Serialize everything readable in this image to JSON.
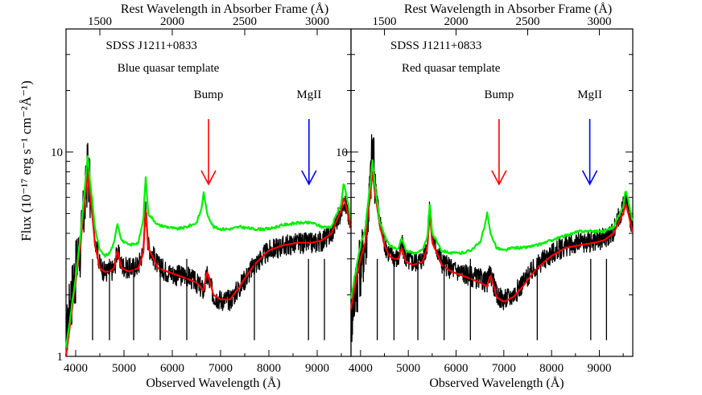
{
  "figure": {
    "ylabel": "Flux (10⁻¹⁷ erg s⁻¹ cm⁻²Å⁻¹)",
    "xlabel_bottom": "Observed Wavelength   (Å)",
    "xlabel_top": "Rest Wavelength in Absorber Frame (Å)"
  },
  "chart_data": [
    {
      "type": "line",
      "object": "SDSS J1211+0833",
      "template_label": "Blue quasar template",
      "template_color": "#0000ff",
      "xlabel": "Observed Wavelength   (Å)",
      "x2label": "Rest Wavelength in Absorber Frame (Å)",
      "ylabel": "Flux (10⁻¹⁷ erg s⁻¹ cm⁻²Å⁻¹)",
      "xlim": [
        3800,
        9700
      ],
      "ylim": [
        1,
        40
      ],
      "yscale": "log",
      "xticks": [
        "4000",
        "5000",
        "6000",
        "7000",
        "8000",
        "9000"
      ],
      "x2ticks": [
        "1500",
        "2000",
        "2500",
        "3000"
      ],
      "yticks": [
        "1",
        "10"
      ],
      "annotations": [
        {
          "text": "Bump",
          "x": 6750,
          "color": "#ff0000"
        },
        {
          "text": "MgII",
          "x": 8830,
          "color": "#0000ff"
        }
      ],
      "series": [
        {
          "color": "#000000",
          "points": [
            [
              3800,
              1.2
            ],
            [
              3900,
              2.0
            ],
            [
              4000,
              2.7
            ],
            [
              4100,
              3.5
            ],
            [
              4200,
              6.0
            ],
            [
              4250,
              9.0
            ],
            [
              4300,
              6.5
            ],
            [
              4400,
              3.8
            ],
            [
              4500,
              2.8
            ],
            [
              4600,
              2.6
            ],
            [
              4700,
              2.6
            ],
            [
              4800,
              2.7
            ],
            [
              4860,
              3.3
            ],
            [
              4950,
              2.8
            ],
            [
              5100,
              2.7
            ],
            [
              5300,
              2.8
            ],
            [
              5400,
              3.3
            ],
            [
              5450,
              5.3
            ],
            [
              5500,
              3.5
            ],
            [
              5700,
              2.8
            ],
            [
              5900,
              2.6
            ],
            [
              6100,
              2.5
            ],
            [
              6300,
              2.5
            ],
            [
              6500,
              2.3
            ],
            [
              6650,
              2.1
            ],
            [
              6720,
              2.5
            ],
            [
              6850,
              2.0
            ],
            [
              7000,
              1.9
            ],
            [
              7200,
              1.9
            ],
            [
              7400,
              2.2
            ],
            [
              7700,
              2.8
            ],
            [
              8000,
              3.3
            ],
            [
              8300,
              3.5
            ],
            [
              8600,
              3.6
            ],
            [
              8900,
              3.6
            ],
            [
              9100,
              3.7
            ],
            [
              9300,
              4.0
            ],
            [
              9500,
              5.2
            ],
            [
              9550,
              6.0
            ],
            [
              9700,
              4.2
            ]
          ]
        },
        {
          "color": "#ff0000",
          "points": [
            [
              3800,
              1.0
            ],
            [
              3900,
              1.5
            ],
            [
              4000,
              2.3
            ],
            [
              4100,
              3.5
            ],
            [
              4200,
              6.0
            ],
            [
              4250,
              8.0
            ],
            [
              4300,
              6.0
            ],
            [
              4400,
              3.5
            ],
            [
              4500,
              2.7
            ],
            [
              4600,
              2.6
            ],
            [
              4700,
              2.6
            ],
            [
              4800,
              2.7
            ],
            [
              4860,
              3.3
            ],
            [
              4950,
              2.7
            ],
            [
              5100,
              2.6
            ],
            [
              5300,
              2.7
            ],
            [
              5400,
              3.2
            ],
            [
              5450,
              5.2
            ],
            [
              5500,
              3.4
            ],
            [
              5700,
              2.7
            ],
            [
              5900,
              2.6
            ],
            [
              6100,
              2.5
            ],
            [
              6300,
              2.4
            ],
            [
              6500,
              2.3
            ],
            [
              6650,
              2.1
            ],
            [
              6720,
              2.6
            ],
            [
              6850,
              2.0
            ],
            [
              7000,
              1.9
            ],
            [
              7200,
              1.9
            ],
            [
              7400,
              2.2
            ],
            [
              7700,
              2.8
            ],
            [
              8000,
              3.3
            ],
            [
              8300,
              3.5
            ],
            [
              8600,
              3.6
            ],
            [
              8900,
              3.6
            ],
            [
              9100,
              3.7
            ],
            [
              9300,
              4.0
            ],
            [
              9500,
              5.2
            ],
            [
              9550,
              6.0
            ],
            [
              9700,
              4.2
            ]
          ]
        },
        {
          "color": "#00ee00",
          "points": [
            [
              3800,
              1.1
            ],
            [
              3900,
              1.6
            ],
            [
              4000,
              2.4
            ],
            [
              4100,
              3.8
            ],
            [
              4200,
              7.0
            ],
            [
              4250,
              9.5
            ],
            [
              4300,
              7.0
            ],
            [
              4400,
              4.2
            ],
            [
              4500,
              3.3
            ],
            [
              4600,
              3.1
            ],
            [
              4700,
              3.2
            ],
            [
              4800,
              3.6
            ],
            [
              4860,
              4.5
            ],
            [
              4950,
              3.7
            ],
            [
              5100,
              3.5
            ],
            [
              5300,
              3.6
            ],
            [
              5400,
              4.6
            ],
            [
              5450,
              7.5
            ],
            [
              5500,
              5.0
            ],
            [
              5700,
              4.4
            ],
            [
              5900,
              4.3
            ],
            [
              6100,
              4.2
            ],
            [
              6300,
              4.3
            ],
            [
              6500,
              4.5
            ],
            [
              6600,
              5.2
            ],
            [
              6650,
              6.3
            ],
            [
              6720,
              5.0
            ],
            [
              6850,
              4.3
            ],
            [
              7000,
              4.2
            ],
            [
              7200,
              4.2
            ],
            [
              7400,
              4.3
            ],
            [
              7700,
              4.2
            ],
            [
              8000,
              4.2
            ],
            [
              8300,
              4.4
            ],
            [
              8600,
              4.5
            ],
            [
              8900,
              4.5
            ],
            [
              9100,
              4.3
            ],
            [
              9300,
              4.3
            ],
            [
              9500,
              5.6
            ],
            [
              9550,
              7.0
            ],
            [
              9700,
              4.6
            ]
          ]
        }
      ]
    },
    {
      "type": "line",
      "object": "SDSS J1211+0833",
      "template_label": "Red quasar template",
      "template_color": "#ff0000",
      "xlabel": "Observed Wavelength   (Å)",
      "x2label": "Rest Wavelength in Absorber Frame (Å)",
      "xlim": [
        3800,
        9700
      ],
      "ylim": [
        1,
        40
      ],
      "yscale": "log",
      "xticks": [
        "4000",
        "5000",
        "6000",
        "7000",
        "8000",
        "9000"
      ],
      "x2ticks": [
        "1500",
        "2000",
        "2500",
        "3000"
      ],
      "yticks": [
        "10"
      ],
      "annotations": [
        {
          "text": "Bump",
          "x": 6900,
          "color": "#ff0000"
        },
        {
          "text": "MgII",
          "x": 8800,
          "color": "#0000ff"
        }
      ],
      "series": [
        {
          "color": "#000000",
          "points": [
            [
              3800,
              1.6
            ],
            [
              3900,
              2.2
            ],
            [
              4000,
              3.0
            ],
            [
              4100,
              3.6
            ],
            [
              4200,
              6.5
            ],
            [
              4250,
              11.0
            ],
            [
              4300,
              7.5
            ],
            [
              4400,
              4.5
            ],
            [
              4500,
              3.6
            ],
            [
              4600,
              3.2
            ],
            [
              4700,
              3.1
            ],
            [
              4800,
              3.0
            ],
            [
              4860,
              3.6
            ],
            [
              4950,
              3.0
            ],
            [
              5100,
              2.9
            ],
            [
              5300,
              3.0
            ],
            [
              5400,
              3.6
            ],
            [
              5450,
              5.5
            ],
            [
              5500,
              3.8
            ],
            [
              5700,
              2.9
            ],
            [
              5900,
              2.7
            ],
            [
              6100,
              2.6
            ],
            [
              6300,
              2.5
            ],
            [
              6500,
              2.4
            ],
            [
              6650,
              2.3
            ],
            [
              6720,
              2.6
            ],
            [
              6850,
              2.0
            ],
            [
              7000,
              1.9
            ],
            [
              7200,
              2.0
            ],
            [
              7400,
              2.3
            ],
            [
              7700,
              2.8
            ],
            [
              8000,
              3.2
            ],
            [
              8300,
              3.5
            ],
            [
              8600,
              3.6
            ],
            [
              8900,
              3.7
            ],
            [
              9100,
              3.8
            ],
            [
              9300,
              4.1
            ],
            [
              9500,
              5.4
            ],
            [
              9550,
              6.0
            ],
            [
              9700,
              4.2
            ]
          ]
        },
        {
          "color": "#ff0000",
          "points": [
            [
              3800,
              1.7
            ],
            [
              3900,
              2.3
            ],
            [
              4000,
              3.0
            ],
            [
              4100,
              3.6
            ],
            [
              4200,
              6.0
            ],
            [
              4250,
              8.0
            ],
            [
              4300,
              6.3
            ],
            [
              4400,
              4.4
            ],
            [
              4500,
              3.5
            ],
            [
              4600,
              3.1
            ],
            [
              4700,
              3.0
            ],
            [
              4800,
              3.0
            ],
            [
              4860,
              3.4
            ],
            [
              4950,
              2.9
            ],
            [
              5100,
              2.8
            ],
            [
              5300,
              2.9
            ],
            [
              5400,
              3.4
            ],
            [
              5450,
              5.0
            ],
            [
              5500,
              3.6
            ],
            [
              5700,
              2.8
            ],
            [
              5900,
              2.6
            ],
            [
              6100,
              2.5
            ],
            [
              6300,
              2.4
            ],
            [
              6500,
              2.3
            ],
            [
              6650,
              2.2
            ],
            [
              6720,
              2.5
            ],
            [
              6850,
              1.95
            ],
            [
              7000,
              1.85
            ],
            [
              7200,
              1.95
            ],
            [
              7400,
              2.2
            ],
            [
              7700,
              2.7
            ],
            [
              8000,
              3.1
            ],
            [
              8300,
              3.4
            ],
            [
              8600,
              3.5
            ],
            [
              8900,
              3.6
            ],
            [
              9100,
              3.7
            ],
            [
              9300,
              4.0
            ],
            [
              9500,
              5.0
            ],
            [
              9550,
              5.6
            ],
            [
              9700,
              4.0
            ]
          ]
        },
        {
          "color": "#00ee00",
          "points": [
            [
              3800,
              1.9
            ],
            [
              3900,
              2.6
            ],
            [
              4000,
              3.5
            ],
            [
              4100,
              4.2
            ],
            [
              4200,
              6.8
            ],
            [
              4250,
              9.0
            ],
            [
              4300,
              6.8
            ],
            [
              4400,
              4.6
            ],
            [
              4500,
              3.9
            ],
            [
              4600,
              3.5
            ],
            [
              4700,
              3.4
            ],
            [
              4800,
              3.4
            ],
            [
              4860,
              3.8
            ],
            [
              4950,
              3.3
            ],
            [
              5100,
              3.2
            ],
            [
              5300,
              3.3
            ],
            [
              5400,
              3.8
            ],
            [
              5450,
              5.5
            ],
            [
              5500,
              4.0
            ],
            [
              5700,
              3.3
            ],
            [
              5900,
              3.2
            ],
            [
              6100,
              3.2
            ],
            [
              6300,
              3.3
            ],
            [
              6500,
              3.6
            ],
            [
              6600,
              4.3
            ],
            [
              6650,
              5.0
            ],
            [
              6720,
              4.0
            ],
            [
              6850,
              3.4
            ],
            [
              7000,
              3.3
            ],
            [
              7200,
              3.4
            ],
            [
              7400,
              3.4
            ],
            [
              7700,
              3.5
            ],
            [
              8000,
              3.7
            ],
            [
              8300,
              3.9
            ],
            [
              8600,
              4.1
            ],
            [
              8900,
              4.1
            ],
            [
              9100,
              4.1
            ],
            [
              9300,
              4.3
            ],
            [
              9500,
              5.4
            ],
            [
              9550,
              6.5
            ],
            [
              9700,
              4.5
            ]
          ]
        }
      ]
    }
  ]
}
